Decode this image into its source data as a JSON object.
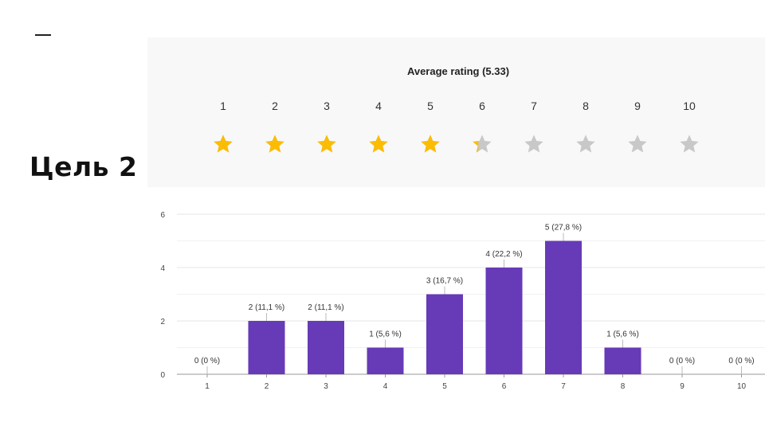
{
  "slide": {
    "title": "Цель 2"
  },
  "rating": {
    "title": "Average rating (5.33)",
    "average": 5.33,
    "scale": [
      "1",
      "2",
      "3",
      "4",
      "5",
      "6",
      "7",
      "8",
      "9",
      "10"
    ],
    "colors": {
      "filled": "#fbbc04",
      "empty": "#c8c8c8"
    }
  },
  "chart_data": {
    "type": "bar",
    "categories": [
      "1",
      "2",
      "3",
      "4",
      "5",
      "6",
      "7",
      "8",
      "9",
      "10"
    ],
    "values": [
      0,
      2,
      2,
      1,
      3,
      4,
      5,
      1,
      0,
      0
    ],
    "data_labels": [
      "0 (0 %)",
      "2 (11,1 %)",
      "2 (11,1 %)",
      "1 (5,6 %)",
      "3 (16,7 %)",
      "4 (22,2 %)",
      "5 (27,8 %)",
      "1 (5,6 %)",
      "0 (0 %)",
      "0 (0 %)"
    ],
    "yticks": [
      "0",
      "2",
      "4",
      "6"
    ],
    "ylim": [
      0,
      6
    ],
    "grid": true,
    "color": "#673ab7",
    "title": "",
    "xlabel": "",
    "ylabel": ""
  }
}
